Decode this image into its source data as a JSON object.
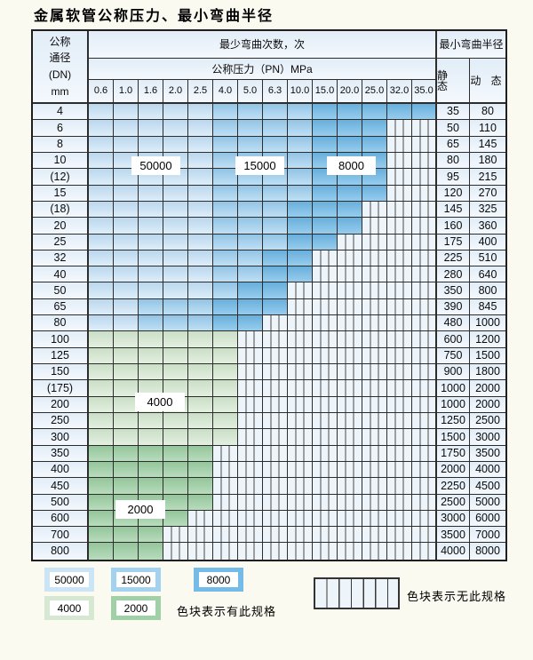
{
  "title": "金属软管公称压力、最小弯曲半径",
  "header": {
    "dn_lines": [
      "公称",
      "通径",
      "(DN)",
      "mm"
    ],
    "min_bend_cycles": "最少弯曲次数，次",
    "nominal_pressure": "公称压力（PN）MPa",
    "min_bend_radius": "最小弯曲半径",
    "static_label": "静 态",
    "dynamic_label": "动 态",
    "pressures": [
      "0.6",
      "1.0",
      "1.6",
      "2.0",
      "2.5",
      "4.0",
      "5.0",
      "6.3",
      "10.0",
      "15.0",
      "20.0",
      "25.0",
      "32.0",
      "35.0"
    ]
  },
  "zone_labels": {
    "z50000": "50000",
    "z15000": "15000",
    "z8000": "8000",
    "z4000": "4000",
    "z2000": "2000"
  },
  "rows": [
    {
      "dn": "4",
      "static": "35",
      "dynamic": "80",
      "bands": [
        {
          "cycles": "50000",
          "from": "0.6",
          "to": "2.5"
        },
        {
          "cycles": "15000",
          "from": "4.0",
          "to": "10.0"
        },
        {
          "cycles": "8000",
          "from": "15.0",
          "to": "35.0"
        }
      ]
    },
    {
      "dn": "6",
      "static": "50",
      "dynamic": "110",
      "bands": [
        {
          "cycles": "50000",
          "from": "0.6",
          "to": "2.5"
        },
        {
          "cycles": "15000",
          "from": "4.0",
          "to": "10.0"
        },
        {
          "cycles": "8000",
          "from": "15.0",
          "to": "25.0"
        }
      ]
    },
    {
      "dn": "8",
      "static": "65",
      "dynamic": "145",
      "bands": [
        {
          "cycles": "50000",
          "from": "0.6",
          "to": "2.5"
        },
        {
          "cycles": "15000",
          "from": "4.0",
          "to": "10.0"
        },
        {
          "cycles": "8000",
          "from": "15.0",
          "to": "25.0"
        }
      ]
    },
    {
      "dn": "10",
      "static": "80",
      "dynamic": "180",
      "bands": [
        {
          "cycles": "50000",
          "from": "0.6",
          "to": "2.5"
        },
        {
          "cycles": "15000",
          "from": "4.0",
          "to": "10.0"
        },
        {
          "cycles": "8000",
          "from": "15.0",
          "to": "25.0"
        }
      ]
    },
    {
      "dn": "(12)",
      "static": "95",
      "dynamic": "215",
      "bands": [
        {
          "cycles": "50000",
          "from": "0.6",
          "to": "2.5"
        },
        {
          "cycles": "15000",
          "from": "4.0",
          "to": "10.0"
        },
        {
          "cycles": "8000",
          "from": "15.0",
          "to": "25.0"
        }
      ]
    },
    {
      "dn": "15",
      "static": "120",
      "dynamic": "270",
      "bands": [
        {
          "cycles": "50000",
          "from": "0.6",
          "to": "2.5"
        },
        {
          "cycles": "15000",
          "from": "4.0",
          "to": "10.0"
        },
        {
          "cycles": "8000",
          "from": "15.0",
          "to": "25.0"
        }
      ]
    },
    {
      "dn": "(18)",
      "static": "145",
      "dynamic": "325",
      "bands": [
        {
          "cycles": "50000",
          "from": "0.6",
          "to": "2.5"
        },
        {
          "cycles": "15000",
          "from": "4.0",
          "to": "6.3"
        },
        {
          "cycles": "8000",
          "from": "10.0",
          "to": "20.0"
        }
      ]
    },
    {
      "dn": "20",
      "static": "160",
      "dynamic": "360",
      "bands": [
        {
          "cycles": "50000",
          "from": "0.6",
          "to": "2.5"
        },
        {
          "cycles": "15000",
          "from": "4.0",
          "to": "6.3"
        },
        {
          "cycles": "8000",
          "from": "10.0",
          "to": "20.0"
        }
      ]
    },
    {
      "dn": "25",
      "static": "175",
      "dynamic": "400",
      "bands": [
        {
          "cycles": "50000",
          "from": "0.6",
          "to": "2.5"
        },
        {
          "cycles": "15000",
          "from": "4.0",
          "to": "6.3"
        },
        {
          "cycles": "8000",
          "from": "10.0",
          "to": "15.0"
        }
      ]
    },
    {
      "dn": "32",
      "static": "225",
      "dynamic": "510",
      "bands": [
        {
          "cycles": "50000",
          "from": "0.6",
          "to": "2.5"
        },
        {
          "cycles": "15000",
          "from": "4.0",
          "to": "5.0"
        },
        {
          "cycles": "8000",
          "from": "6.3",
          "to": "10.0"
        }
      ]
    },
    {
      "dn": "40",
      "static": "280",
      "dynamic": "640",
      "bands": [
        {
          "cycles": "50000",
          "from": "0.6",
          "to": "2.5"
        },
        {
          "cycles": "15000",
          "from": "4.0",
          "to": "5.0"
        },
        {
          "cycles": "8000",
          "from": "6.3",
          "to": "10.0"
        }
      ]
    },
    {
      "dn": "50",
      "static": "350",
      "dynamic": "800",
      "bands": [
        {
          "cycles": "50000",
          "from": "0.6",
          "to": "2.5"
        },
        {
          "cycles": "15000",
          "from": "4.0",
          "to": "4.0"
        },
        {
          "cycles": "8000",
          "from": "5.0",
          "to": "6.3"
        }
      ]
    },
    {
      "dn": "65",
      "static": "390",
      "dynamic": "845",
      "bands": [
        {
          "cycles": "50000",
          "from": "0.6",
          "to": "1.0"
        },
        {
          "cycles": "15000",
          "from": "1.6",
          "to": "2.5"
        },
        {
          "cycles": "8000",
          "from": "4.0",
          "to": "6.3"
        }
      ]
    },
    {
      "dn": "80",
      "static": "480",
      "dynamic": "1000",
      "bands": [
        {
          "cycles": "50000",
          "from": "0.6",
          "to": "1.0"
        },
        {
          "cycles": "15000",
          "from": "1.6",
          "to": "2.5"
        },
        {
          "cycles": "8000",
          "from": "4.0",
          "to": "5.0"
        }
      ]
    },
    {
      "dn": "100",
      "static": "600",
      "dynamic": "1200",
      "bands": [
        {
          "cycles": "4000",
          "from": "0.6",
          "to": "4.0"
        }
      ]
    },
    {
      "dn": "125",
      "static": "750",
      "dynamic": "1500",
      "bands": [
        {
          "cycles": "4000",
          "from": "0.6",
          "to": "4.0"
        }
      ]
    },
    {
      "dn": "150",
      "static": "900",
      "dynamic": "1800",
      "bands": [
        {
          "cycles": "4000",
          "from": "0.6",
          "to": "4.0"
        }
      ]
    },
    {
      "dn": "(175)",
      "static": "1000",
      "dynamic": "2000",
      "bands": [
        {
          "cycles": "4000",
          "from": "0.6",
          "to": "4.0"
        }
      ]
    },
    {
      "dn": "200",
      "static": "1000",
      "dynamic": "2000",
      "bands": [
        {
          "cycles": "4000",
          "from": "0.6",
          "to": "4.0"
        }
      ]
    },
    {
      "dn": "250",
      "static": "1250",
      "dynamic": "2500",
      "bands": [
        {
          "cycles": "4000",
          "from": "0.6",
          "to": "4.0"
        }
      ]
    },
    {
      "dn": "300",
      "static": "1500",
      "dynamic": "3000",
      "bands": [
        {
          "cycles": "4000",
          "from": "0.6",
          "to": "4.0"
        }
      ]
    },
    {
      "dn": "350",
      "static": "1750",
      "dynamic": "3500",
      "bands": [
        {
          "cycles": "2000",
          "from": "0.6",
          "to": "2.5"
        }
      ]
    },
    {
      "dn": "400",
      "static": "2000",
      "dynamic": "4000",
      "bands": [
        {
          "cycles": "2000",
          "from": "0.6",
          "to": "2.5"
        }
      ]
    },
    {
      "dn": "450",
      "static": "2250",
      "dynamic": "4500",
      "bands": [
        {
          "cycles": "2000",
          "from": "0.6",
          "to": "2.5"
        }
      ]
    },
    {
      "dn": "500",
      "static": "2500",
      "dynamic": "5000",
      "bands": [
        {
          "cycles": "2000",
          "from": "0.6",
          "to": "2.5"
        }
      ]
    },
    {
      "dn": "600",
      "static": "3000",
      "dynamic": "6000",
      "bands": [
        {
          "cycles": "2000",
          "from": "0.6",
          "to": "2.0"
        }
      ]
    },
    {
      "dn": "700",
      "static": "3500",
      "dynamic": "7000",
      "bands": [
        {
          "cycles": "2000",
          "from": "0.6",
          "to": "1.6"
        }
      ]
    },
    {
      "dn": "800",
      "static": "4000",
      "dynamic": "8000",
      "bands": [
        {
          "cycles": "2000",
          "from": "0.6",
          "to": "1.6"
        }
      ]
    }
  ],
  "legend": {
    "items": [
      {
        "label": "50000",
        "color": "#cbe4f6"
      },
      {
        "label": "15000",
        "color": "#a3d2f0"
      },
      {
        "label": "8000",
        "color": "#74bce7"
      },
      {
        "label": "4000",
        "color": "#d6e8d2"
      },
      {
        "label": "2000",
        "color": "#a0d0a6"
      }
    ],
    "has_spec_text": "色块表示有此规格",
    "no_spec_text": "色块表示无此规格"
  },
  "colors": {
    "cycles_50000": "#cbe4f6",
    "cycles_15000": "#a3d2f0",
    "cycles_8000": "#74bce7",
    "cycles_4000": "#d6e8d2",
    "cycles_2000": "#a0d0a6",
    "no_spec_background": "#edf4fa",
    "grid_border": "#2d2d2d",
    "page_background": "#fafaf1"
  }
}
